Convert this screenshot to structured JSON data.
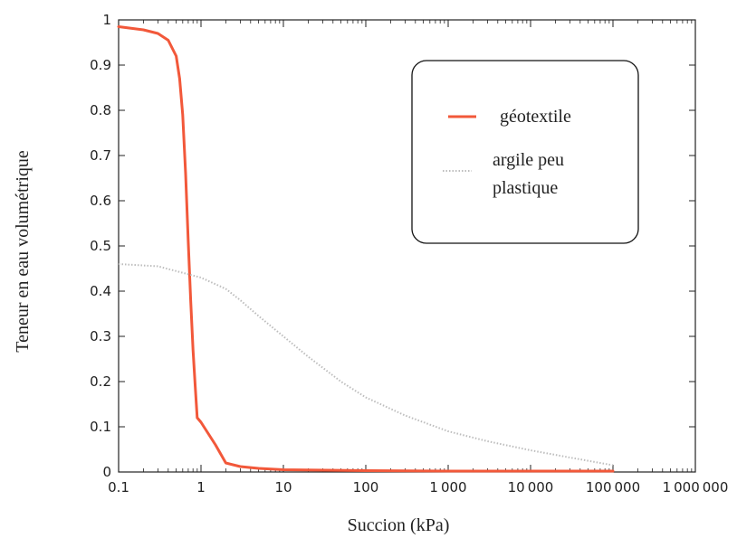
{
  "chart_data": {
    "type": "line",
    "title": "",
    "xlabel": "Succion (kPa)",
    "ylabel": "Teneur en eau volumétrique",
    "x_scale": "log",
    "xlim": [
      0.1,
      1000000
    ],
    "ylim": [
      0,
      1
    ],
    "x_ticks": [
      0.1,
      1,
      10,
      100,
      1000,
      10000,
      100000,
      1000000
    ],
    "x_tick_labels": [
      "0.1",
      "1",
      "10",
      "100",
      "1000",
      "10000",
      "100000",
      "1000000"
    ],
    "y_ticks": [
      0,
      0.1,
      0.2,
      0.3,
      0.4,
      0.5,
      0.6,
      0.7,
      0.8,
      0.9,
      1
    ],
    "y_tick_labels": [
      "0",
      "0.1",
      "0.2",
      "0.3",
      "0.4",
      "0.5",
      "0.6",
      "0.7",
      "0.8",
      "0.9",
      "1"
    ],
    "grid": false,
    "legend_position": "top-right",
    "series": [
      {
        "name": "géotextile",
        "color": "#f2583a",
        "style": "solid",
        "x": [
          0.1,
          0.2,
          0.3,
          0.4,
          0.5,
          0.55,
          0.6,
          0.65,
          0.7,
          0.75,
          0.8,
          0.85,
          0.9,
          1,
          1.5,
          2,
          3,
          5,
          10,
          100,
          1000,
          10000,
          100000
        ],
        "y": [
          0.985,
          0.978,
          0.97,
          0.955,
          0.92,
          0.87,
          0.79,
          0.66,
          0.51,
          0.38,
          0.27,
          0.19,
          0.12,
          0.11,
          0.06,
          0.02,
          0.012,
          0.008,
          0.005,
          0.003,
          0.002,
          0.002,
          0.002
        ]
      },
      {
        "name": "argile peu plastique",
        "color": "#bdbdbd",
        "style": "dotted",
        "x": [
          0.1,
          0.3,
          1,
          2,
          3,
          5,
          10,
          20,
          50,
          100,
          300,
          1000,
          3000,
          10000,
          30000,
          100000
        ],
        "y": [
          0.46,
          0.455,
          0.43,
          0.405,
          0.38,
          0.345,
          0.3,
          0.255,
          0.2,
          0.165,
          0.125,
          0.09,
          0.068,
          0.048,
          0.032,
          0.015
        ]
      }
    ]
  }
}
